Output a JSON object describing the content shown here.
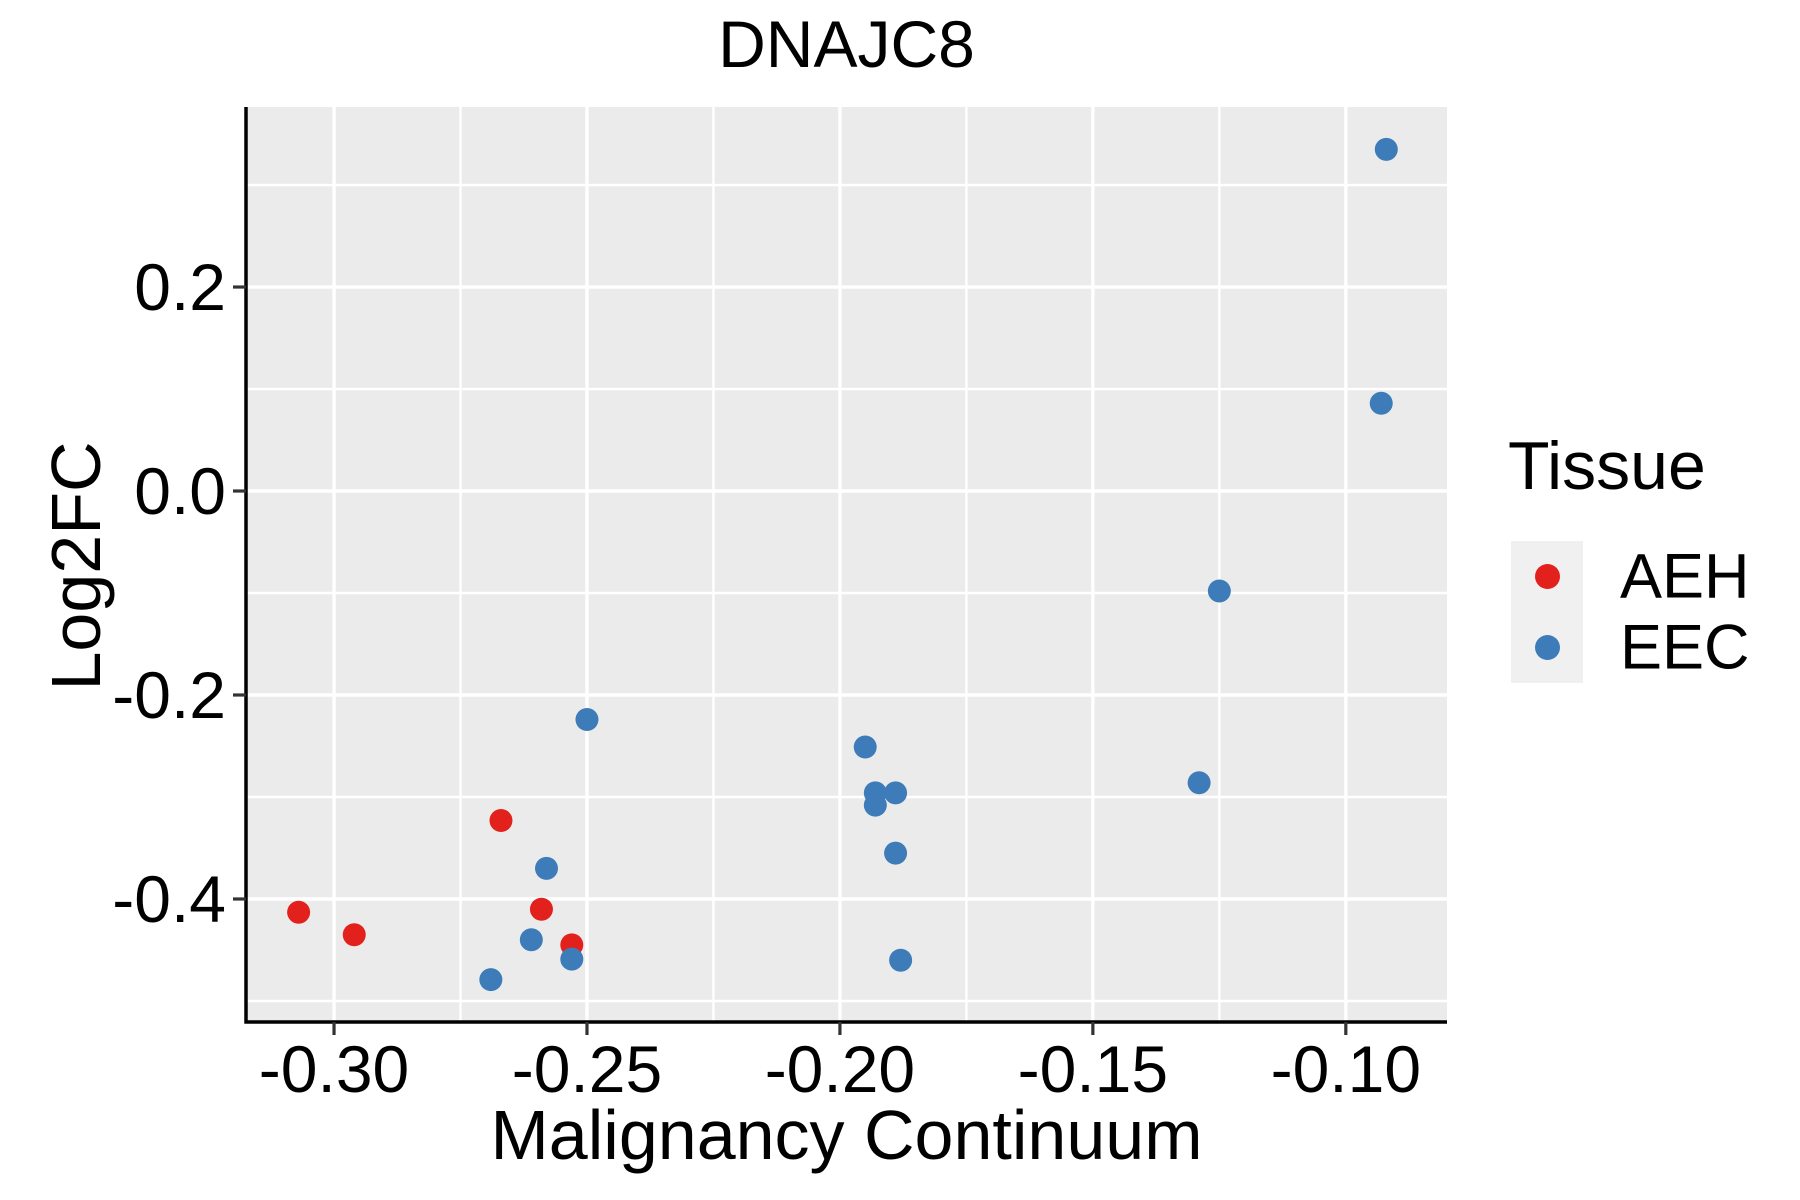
{
  "chart_data": {
    "type": "scatter",
    "title": "DNAJC8",
    "xlabel": "Malignancy Continuum",
    "ylabel": "Log2FC",
    "legend_title": "Tissue",
    "legend_position": "right",
    "grid": true,
    "panel_background": "#ebebeb",
    "gridline_color": "#ffffff",
    "axis_line_color": "#000000",
    "tick_color": "#333333",
    "legend_key_background": "#f0f0f0",
    "xlim": [
      -0.3174,
      -0.08
    ],
    "ylim": [
      -0.5206,
      0.3765
    ],
    "x_major_ticks": [
      -0.3,
      -0.25,
      -0.2,
      -0.15,
      -0.1
    ],
    "x_tick_labels": [
      "-0.30",
      "-0.25",
      "-0.20",
      "-0.15",
      "-0.10"
    ],
    "x_minor_gridlines": [
      -0.275,
      -0.225,
      -0.175,
      -0.125
    ],
    "y_major_ticks": [
      0.2,
      0.0,
      -0.2,
      -0.4
    ],
    "y_tick_labels": [
      "0.2",
      "0.0",
      "-0.2",
      "-0.4"
    ],
    "y_minor_gridlines": [
      0.3,
      0.1,
      -0.1,
      -0.3,
      -0.5
    ],
    "series": [
      {
        "name": "AEH",
        "color": "#e3211c",
        "points": [
          [
            -0.307,
            -0.413
          ],
          [
            -0.296,
            -0.435
          ],
          [
            -0.267,
            -0.323
          ],
          [
            -0.259,
            -0.41
          ],
          [
            -0.253,
            -0.445
          ]
        ]
      },
      {
        "name": "EEC",
        "color": "#3d7cb8",
        "points": [
          [
            -0.269,
            -0.479
          ],
          [
            -0.261,
            -0.44
          ],
          [
            -0.258,
            -0.37
          ],
          [
            -0.253,
            -0.459
          ],
          [
            -0.25,
            -0.224
          ],
          [
            -0.195,
            -0.251
          ],
          [
            -0.193,
            -0.296
          ],
          [
            -0.193,
            -0.308
          ],
          [
            -0.189,
            -0.296
          ],
          [
            -0.189,
            -0.355
          ],
          [
            -0.188,
            -0.46
          ],
          [
            -0.129,
            -0.286
          ],
          [
            -0.125,
            -0.098
          ],
          [
            -0.093,
            0.086
          ],
          [
            -0.092,
            0.335
          ]
        ]
      }
    ]
  }
}
